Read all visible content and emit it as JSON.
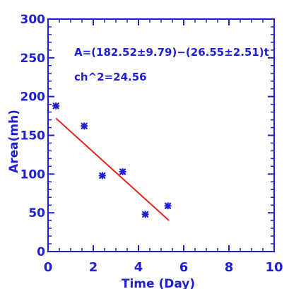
{
  "chart_data": {
    "type": "scatter",
    "xlabel": "Time (Day)",
    "ylabel": "Area(mh)",
    "xlim": [
      0,
      10
    ],
    "ylim": [
      0,
      300
    ],
    "xticks": [
      0,
      2,
      4,
      6,
      8,
      10
    ],
    "yticks": [
      0,
      50,
      100,
      150,
      200,
      250,
      300
    ],
    "grid": false,
    "colors": {
      "axis": "#1e1ed2",
      "points": "#1e1ed2",
      "fit": "#e8261e"
    },
    "points": [
      {
        "x": 0.35,
        "y": 188
      },
      {
        "x": 1.6,
        "y": 162
      },
      {
        "x": 2.4,
        "y": 98
      },
      {
        "x": 3.3,
        "y": 103
      },
      {
        "x": 4.3,
        "y": 48
      },
      {
        "x": 5.3,
        "y": 59
      }
    ],
    "fit_line": {
      "x": [
        0.35,
        5.35
      ],
      "y": [
        172,
        40
      ]
    },
    "annotations": [
      {
        "text": "A=(182.52±9.79)−(26.55±2.51)t"
      },
      {
        "text": "ch^2=24.56"
      }
    ]
  }
}
